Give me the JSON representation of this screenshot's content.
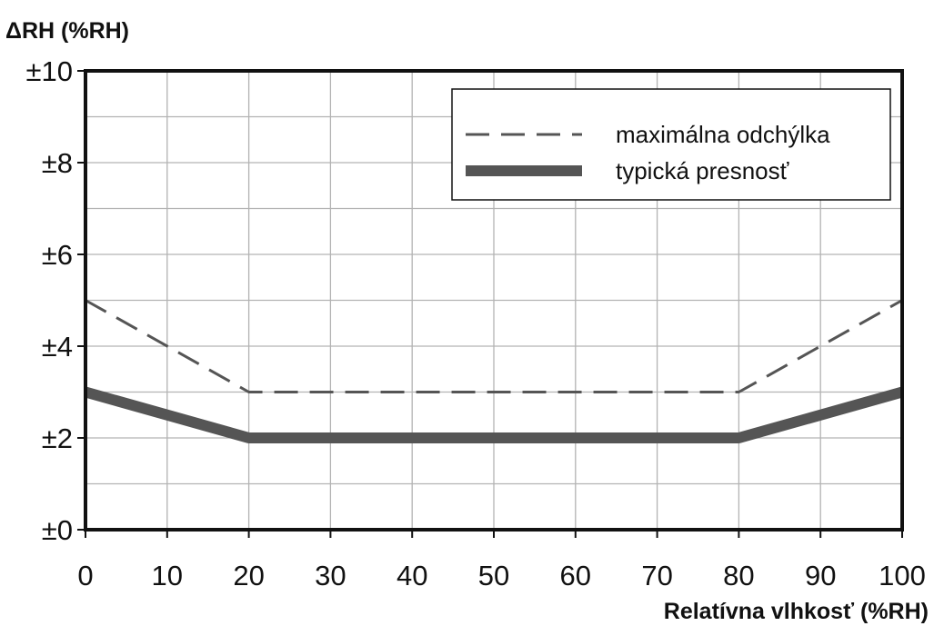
{
  "chart_data": {
    "type": "line",
    "title": "",
    "xlabel": "Relatívna vlhkosť (%RH)",
    "ylabel": "ΔRH (%RH)",
    "xlim": [
      0,
      100
    ],
    "ylim": [
      0,
      10
    ],
    "x_ticks": [
      0,
      10,
      20,
      30,
      40,
      50,
      60,
      70,
      80,
      90,
      100
    ],
    "x_tick_labels": [
      "0",
      "10",
      "20",
      "30",
      "40",
      "50",
      "60",
      "70",
      "80",
      "90",
      "100"
    ],
    "y_ticks": [
      0,
      2,
      4,
      6,
      8,
      10
    ],
    "y_tick_labels": [
      "±0",
      "±2",
      "±4",
      "±6",
      "±8",
      "±10"
    ],
    "grid": true,
    "legend_position": "top-right",
    "series": [
      {
        "name": "maximálna odchýlka",
        "style": "dashed",
        "color": "#555555",
        "x": [
          0,
          20,
          80,
          100
        ],
        "y": [
          5,
          3,
          3,
          5
        ]
      },
      {
        "name": "typická presnosť",
        "style": "solid-thick",
        "color": "#555555",
        "x": [
          0,
          20,
          80,
          100
        ],
        "y": [
          3,
          2,
          2,
          3
        ]
      }
    ]
  }
}
